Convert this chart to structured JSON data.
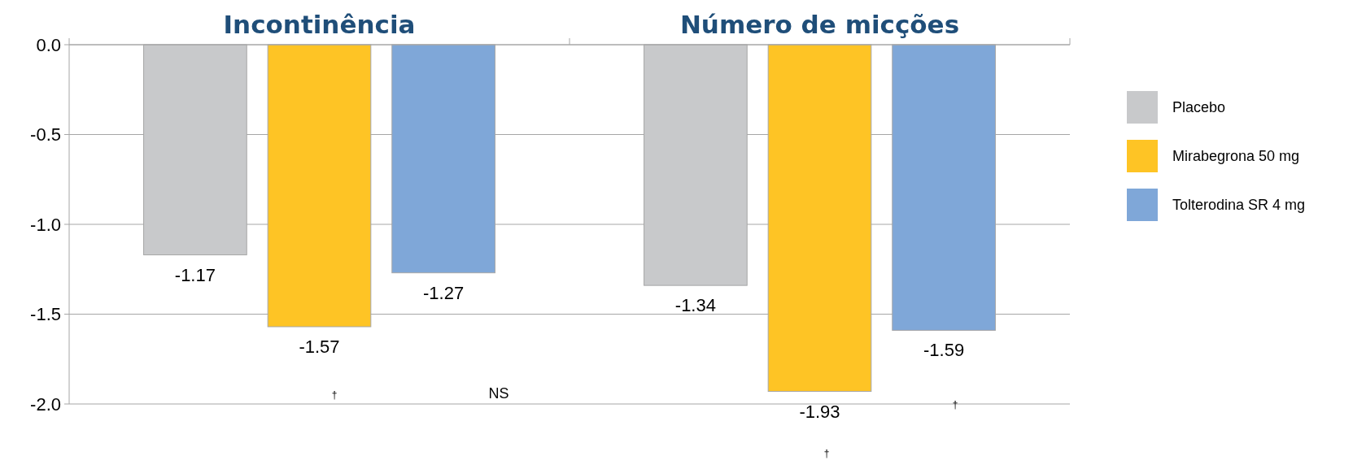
{
  "chart_data": {
    "type": "bar",
    "categories": [
      "Incontinência",
      "Número de micções"
    ],
    "series": [
      {
        "name": "Placebo",
        "color": "#c8c9cb",
        "values": [
          -1.17,
          -1.34
        ]
      },
      {
        "name": "Mirabegrona 50 mg",
        "color": "#fec425",
        "values": [
          -1.57,
          -1.93
        ]
      },
      {
        "name": "Tolterodina SR 4 mg",
        "color": "#7fa7d8",
        "values": [
          -1.27,
          -1.59
        ]
      }
    ],
    "ylim": [
      -2.0,
      0
    ],
    "yticks": [
      {
        "value": 0,
        "label": "0.0"
      },
      {
        "value": -0.5,
        "label": "-0.5"
      },
      {
        "value": -1,
        "label": "-1.0"
      },
      {
        "value": -1.5,
        "label": "-1.5"
      },
      {
        "value": -2,
        "label": "-2.0"
      }
    ],
    "grid": "y",
    "legend": "right",
    "data_labels": true,
    "annotations": [
      "†",
      "NS",
      "†",
      "†"
    ]
  }
}
